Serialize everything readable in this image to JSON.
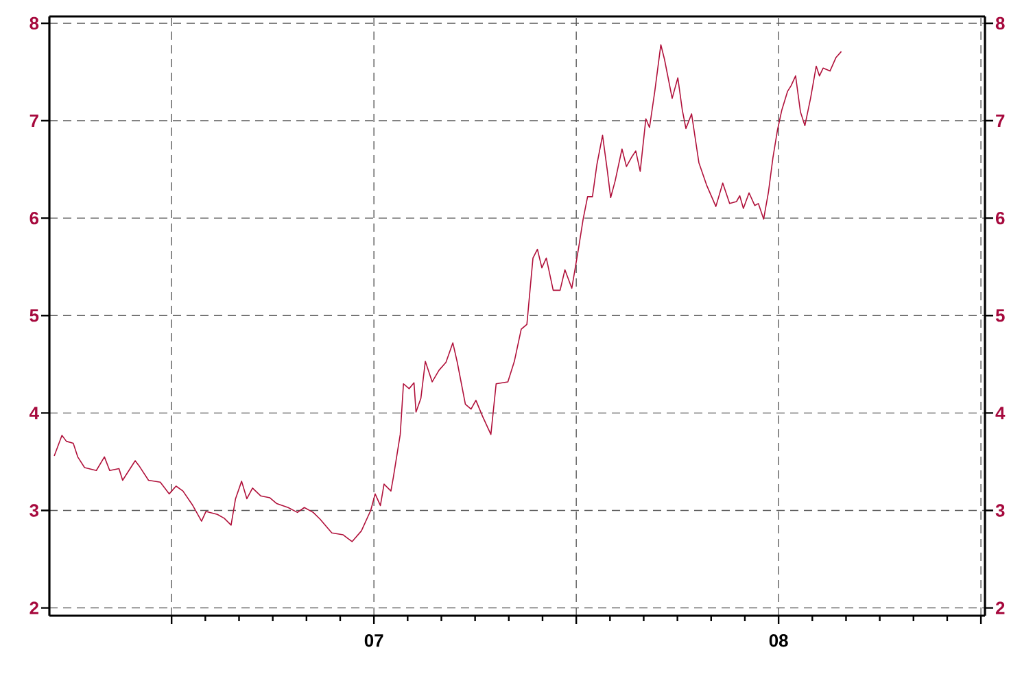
{
  "chart_data": {
    "type": "line",
    "x": [
      2006.21,
      2006.229,
      2006.24,
      2006.257,
      2006.268,
      2006.285,
      2006.314,
      2006.334,
      2006.347,
      2006.37,
      2006.379,
      2006.41,
      2006.421,
      2006.443,
      2006.472,
      2006.494,
      2006.511,
      2006.528,
      2006.551,
      2006.574,
      2006.585,
      2006.613,
      2006.63,
      2006.647,
      2006.658,
      2006.673,
      2006.686,
      2006.7,
      2006.72,
      2006.743,
      2006.76,
      2006.788,
      2006.811,
      2006.828,
      2006.85,
      2006.867,
      2006.896,
      2006.924,
      2006.946,
      2006.969,
      2006.992,
      2007.003,
      2007.016,
      2007.025,
      2007.042,
      2007.048,
      2007.065,
      2007.073,
      2007.087,
      2007.099,
      2007.104,
      2007.116,
      2007.127,
      2007.144,
      2007.161,
      2007.178,
      2007.195,
      2007.206,
      2007.226,
      2007.24,
      2007.252,
      2007.268,
      2007.289,
      2007.302,
      2007.331,
      2007.347,
      2007.364,
      2007.378,
      2007.393,
      2007.404,
      2007.415,
      2007.426,
      2007.443,
      2007.46,
      2007.472,
      2007.489,
      2007.506,
      2007.517,
      2007.528,
      2007.54,
      2007.551,
      2007.565,
      2007.577,
      2007.585,
      2007.596,
      2007.613,
      2007.624,
      2007.636,
      2007.647,
      2007.658,
      2007.672,
      2007.681,
      2007.694,
      2007.709,
      2007.718,
      2007.737,
      2007.751,
      2007.762,
      2007.771,
      2007.785,
      2007.803,
      2007.822,
      2007.845,
      2007.862,
      2007.879,
      2007.896,
      2007.904,
      2007.913,
      2007.927,
      2007.941,
      2007.95,
      2007.963,
      2007.975,
      2007.986,
      2007.997,
      2008.008,
      2008.022,
      2008.031,
      2008.042,
      2008.054,
      2008.065,
      2008.079,
      2008.093,
      2008.101,
      2008.11,
      2008.127,
      2008.142,
      2008.155
    ],
    "series": [
      {
        "color": "#b0103a",
        "values": [
          3.56,
          3.77,
          3.71,
          3.69,
          3.55,
          3.44,
          3.41,
          3.55,
          3.41,
          3.43,
          3.31,
          3.51,
          3.45,
          3.31,
          3.29,
          3.17,
          3.25,
          3.2,
          3.06,
          2.89,
          2.99,
          2.96,
          2.92,
          2.85,
          3.12,
          3.3,
          3.12,
          3.23,
          3.15,
          3.13,
          3.07,
          3.03,
          2.98,
          3.03,
          2.98,
          2.91,
          2.77,
          2.75,
          2.68,
          2.79,
          3.0,
          3.17,
          3.05,
          3.27,
          3.2,
          3.34,
          3.78,
          4.3,
          4.25,
          4.31,
          4.01,
          4.15,
          4.53,
          4.32,
          4.44,
          4.52,
          4.72,
          4.52,
          4.09,
          4.04,
          4.13,
          3.97,
          3.78,
          4.3,
          4.32,
          4.53,
          4.86,
          4.91,
          5.59,
          5.68,
          5.49,
          5.59,
          5.26,
          5.26,
          5.47,
          5.28,
          5.7,
          5.99,
          6.22,
          6.22,
          6.55,
          6.85,
          6.48,
          6.21,
          6.38,
          6.71,
          6.53,
          6.62,
          6.69,
          6.48,
          7.02,
          6.93,
          7.3,
          7.78,
          7.63,
          7.23,
          7.44,
          7.11,
          6.92,
          7.07,
          6.57,
          6.34,
          6.12,
          6.36,
          6.15,
          6.17,
          6.23,
          6.1,
          6.26,
          6.13,
          6.15,
          5.99,
          6.27,
          6.62,
          6.9,
          7.11,
          7.3,
          7.36,
          7.46,
          7.09,
          6.95,
          7.23,
          7.56,
          7.46,
          7.54,
          7.51,
          7.65,
          7.71
        ]
      }
    ],
    "xlim": [
      2006.198,
      2008.51
    ],
    "xticks": [
      {
        "value": 2006.5,
        "label": null
      },
      {
        "value": 2007,
        "label": "07"
      },
      {
        "value": 2007.5,
        "label": null
      },
      {
        "value": 2008,
        "label": "08"
      },
      {
        "value": 2008.5,
        "label": null
      }
    ],
    "ylim": [
      1.92,
      8.07
    ],
    "yticks": [
      2,
      3,
      4,
      5,
      6,
      7,
      8
    ],
    "y2lim": [
      1.92,
      8.07
    ],
    "y2ticks": [
      2,
      3,
      4,
      5,
      6,
      7,
      8
    ],
    "grid": true,
    "line_style": "solid",
    "marker": "none"
  }
}
